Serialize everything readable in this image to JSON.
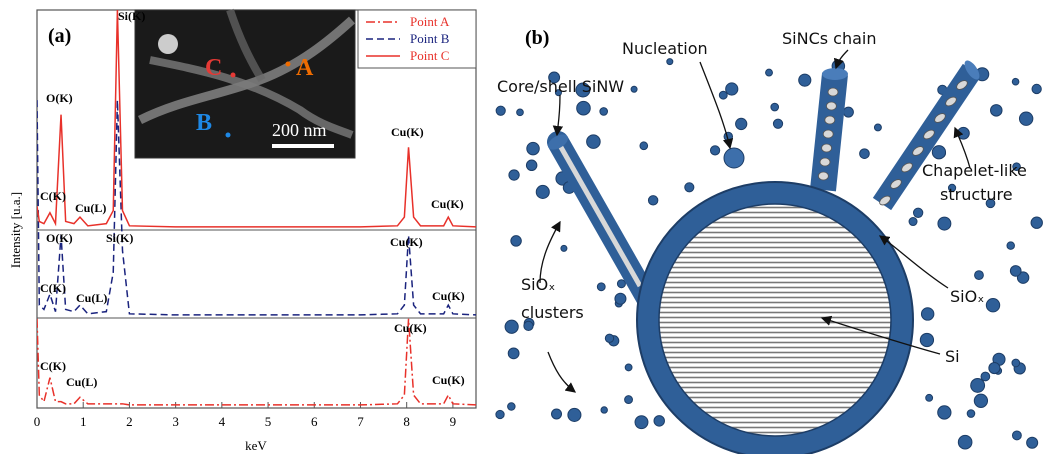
{
  "chart_data": {
    "type": "line",
    "panel_label": "(a)",
    "x_label": "keV",
    "y_label": "Intensity [u.a.]",
    "x": [
      0,
      0.05,
      0.15,
      0.28,
      0.4,
      0.52,
      0.62,
      0.8,
      0.93,
      1.1,
      1.5,
      1.65,
      1.74,
      1.85,
      2.0,
      3,
      4,
      5,
      6,
      7,
      7.8,
      7.95,
      8.04,
      8.15,
      8.3,
      8.8,
      8.9,
      9.0,
      9.5
    ],
    "series": [
      {
        "name": "Point A",
        "color": "#e8312a",
        "line_style": "dashdot",
        "values": [
          40,
          5,
          2,
          13,
          2,
          2,
          1,
          1,
          4,
          1,
          1,
          1,
          1,
          1,
          0.5,
          0.5,
          0.5,
          0.5,
          0.5,
          0.5,
          1,
          5,
          40,
          5,
          1,
          1,
          5,
          1,
          0.5
        ]
      },
      {
        "name": "Point B",
        "color": "#1a237e",
        "line_style": "dashed",
        "values": [
          99,
          5,
          3,
          10,
          2,
          37,
          3,
          2,
          5,
          1,
          2,
          20,
          99,
          30,
          1,
          0.5,
          0.5,
          0.5,
          0.5,
          0.5,
          1,
          5,
          37,
          5,
          1,
          1,
          5,
          1,
          0.5
        ]
      },
      {
        "name": "Point C",
        "color": "#e8312a",
        "line_style": "solid",
        "values": [
          10,
          3,
          2,
          7,
          2,
          52,
          3,
          2,
          5,
          1,
          2,
          8,
          100,
          8,
          1,
          0.5,
          0.5,
          0.5,
          0.5,
          0.5,
          1,
          5,
          37,
          5,
          1,
          1,
          5,
          1,
          0.5
        ]
      }
    ],
    "xlim": [
      0,
      9.5
    ],
    "xticks": [
      0,
      1,
      2,
      3,
      4,
      5,
      6,
      7,
      8,
      9
    ],
    "annotations": [
      "Si(K)",
      "O(K)",
      "C(K)",
      "Cu(L)",
      "Cu(K)",
      "Cu(K)",
      "O(K)",
      "Si(K)",
      "C(K)",
      "Cu(L)",
      "Cu(K)",
      "Cu(K)",
      "Cu(K)",
      "C(K)",
      "Cu(L)",
      "Cu(K)"
    ],
    "inset_labels": [
      "C",
      "A",
      "B",
      "200 nm"
    ]
  },
  "diagram": {
    "panel_label": "(b)",
    "labels": [
      "Nucleation",
      "SiNCs chain",
      "Core/shell SiNW",
      "Chapelet-like",
      "structure",
      "SiOₓ",
      "SiOₓ",
      "clusters",
      "Si"
    ]
  }
}
